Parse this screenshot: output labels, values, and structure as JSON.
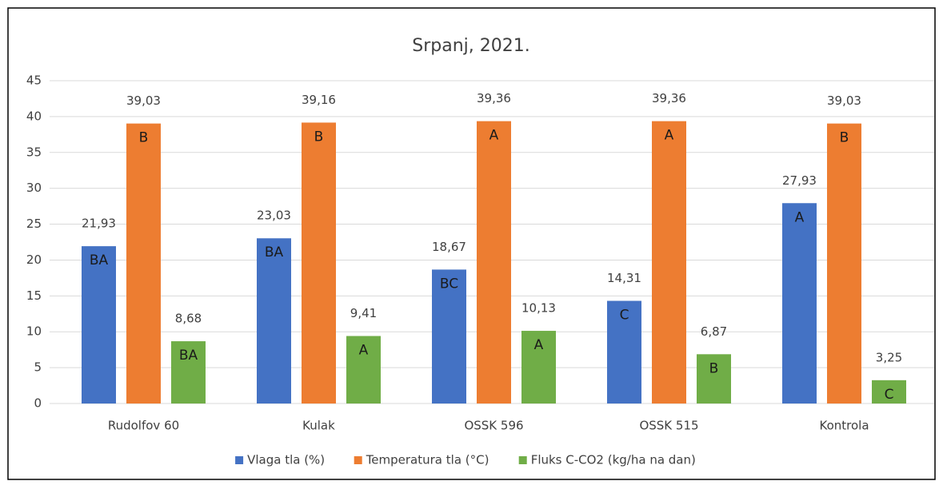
{
  "chart_data": {
    "type": "bar",
    "title": "Srpanj, 2021.",
    "categories": [
      "Rudolfov 60",
      "Kulak",
      "OSSK 596",
      "OSSK 515",
      "Kontrola"
    ],
    "series": [
      {
        "name": "Vlaga tla (%)",
        "color": "#4472c4",
        "values": [
          21.93,
          23.03,
          18.67,
          14.31,
          27.93
        ],
        "value_labels": [
          "21,93",
          "23,03",
          "18,67",
          "14,31",
          "27,93"
        ],
        "annotations": [
          "BA",
          "BA",
          "BC",
          "C",
          "A"
        ]
      },
      {
        "name": "Temperatura tla (°C)",
        "color": "#ed7d31",
        "values": [
          39.03,
          39.16,
          39.36,
          39.36,
          39.03
        ],
        "value_labels": [
          "39,03",
          "39,16",
          "39,36",
          "39,36",
          "39,03"
        ],
        "annotations": [
          "B",
          "B",
          "A",
          "A",
          "B"
        ]
      },
      {
        "name": "Fluks C-CO2 (kg/ha na dan)",
        "color": "#70ad47",
        "values": [
          8.68,
          9.41,
          10.13,
          6.87,
          3.25
        ],
        "value_labels": [
          "8,68",
          "9,41",
          "10,13",
          "6,87",
          "3,25"
        ],
        "annotations": [
          "BA",
          "A",
          "A",
          "B",
          "C"
        ]
      }
    ],
    "ylim": [
      0,
      45
    ],
    "yticks": [
      0,
      5,
      10,
      15,
      20,
      25,
      30,
      35,
      40,
      45
    ],
    "grid": true,
    "legend": "bottom"
  }
}
